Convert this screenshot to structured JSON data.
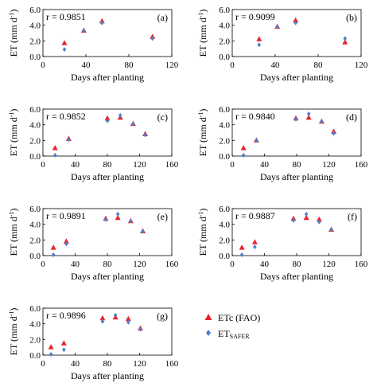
{
  "legend": {
    "items": [
      {
        "label": "ETc (FAO)",
        "marker": "triangle",
        "color": "#e8242a"
      },
      {
        "label_main": "ET",
        "label_sub": "SAFER",
        "marker": "diamond",
        "color": "#4f7fcc"
      }
    ]
  },
  "chart_data": [
    {
      "type": "scatter",
      "panel": "(a)",
      "r_text": "r = 0.9851",
      "xlabel": "Days after planting",
      "ylabel_main": "ET (mm d",
      "ylabel_sup": "-1",
      "ylabel_end": ")",
      "xlim": [
        0,
        120
      ],
      "ylim": [
        0,
        6
      ],
      "xticks": [
        "0",
        "40",
        "80",
        "120"
      ],
      "yticks": [
        "0.0",
        "2.0",
        "4.0",
        "6.0"
      ],
      "series": [
        {
          "name": "ETc (FAO)",
          "marker": "triangle",
          "x": [
            20,
            38,
            55,
            102
          ],
          "y": [
            1.7,
            3.3,
            4.5,
            2.5
          ]
        },
        {
          "name": "ETSAFER",
          "marker": "diamond",
          "x": [
            20,
            38,
            55,
            102
          ],
          "y": [
            0.9,
            3.3,
            4.3,
            2.3
          ]
        }
      ]
    },
    {
      "type": "scatter",
      "panel": "(b)",
      "r_text": "r = 0.9099",
      "xlabel": "Days after planting",
      "ylabel_main": "ET (mm d",
      "ylabel_sup": "-1",
      "ylabel_end": ")",
      "xlim": [
        0,
        120
      ],
      "ylim": [
        0,
        6
      ],
      "xticks": [
        "0",
        "40",
        "80",
        "120"
      ],
      "yticks": [
        "0.0",
        "2.0",
        "4.0",
        "6.0"
      ],
      "series": [
        {
          "name": "ETc (FAO)",
          "marker": "triangle",
          "x": [
            25,
            42,
            59,
            105
          ],
          "y": [
            2.2,
            3.8,
            4.6,
            1.8
          ]
        },
        {
          "name": "ETSAFER",
          "marker": "diamond",
          "x": [
            25,
            42,
            59,
            105
          ],
          "y": [
            1.5,
            3.8,
            4.3,
            2.3
          ]
        }
      ]
    },
    {
      "type": "scatter",
      "panel": "(c)",
      "r_text": "r = 0.9852",
      "xlabel": "Days after planting",
      "ylabel_main": "ET (mm d",
      "ylabel_sup": "-1",
      "ylabel_end": ")",
      "xlim": [
        0,
        160
      ],
      "ylim": [
        0,
        6
      ],
      "xticks": [
        "0",
        "40",
        "80",
        "120",
        "160"
      ],
      "yticks": [
        "0.0",
        "2.0",
        "4.0",
        "6.0"
      ],
      "series": [
        {
          "name": "ETc (FAO)",
          "marker": "triangle",
          "x": [
            15,
            32,
            80,
            96,
            112,
            127
          ],
          "y": [
            1.0,
            2.2,
            4.8,
            4.9,
            4.1,
            2.8
          ]
        },
        {
          "name": "ETSAFER",
          "marker": "diamond",
          "x": [
            15,
            32,
            80,
            96,
            112,
            127
          ],
          "y": [
            0.1,
            2.1,
            4.5,
            5.2,
            4.1,
            2.7
          ]
        }
      ]
    },
    {
      "type": "scatter",
      "panel": "(d)",
      "r_text": "r = 0.9840",
      "xlabel": "Days after planting",
      "ylabel_main": "ET (mm d",
      "ylabel_sup": "-1",
      "ylabel_end": ")",
      "xlim": [
        0,
        160
      ],
      "ylim": [
        0,
        6
      ],
      "xticks": [
        "0",
        "40",
        "80",
        "120",
        "160"
      ],
      "yticks": [
        "0.0",
        "2.0",
        "4.0",
        "6.0"
      ],
      "series": [
        {
          "name": "ETc (FAO)",
          "marker": "triangle",
          "x": [
            14,
            30,
            79,
            95,
            111,
            126
          ],
          "y": [
            1.0,
            2.0,
            4.8,
            4.9,
            4.4,
            3.1
          ]
        },
        {
          "name": "ETSAFER",
          "marker": "diamond",
          "x": [
            14,
            30,
            79,
            95,
            111,
            126
          ],
          "y": [
            0.1,
            2.0,
            4.7,
            5.4,
            4.4,
            2.9
          ]
        }
      ]
    },
    {
      "type": "scatter",
      "panel": "(e)",
      "r_text": "r = 0.9891",
      "xlabel": "Days after planting",
      "ylabel_main": "ET (mm d",
      "ylabel_sup": "-1",
      "ylabel_end": ")",
      "xlim": [
        0,
        160
      ],
      "ylim": [
        0,
        6
      ],
      "xticks": [
        "0",
        "40",
        "80",
        "120",
        "160"
      ],
      "yticks": [
        "0.0",
        "2.0",
        "4.0",
        "6.0"
      ],
      "series": [
        {
          "name": "ETc (FAO)",
          "marker": "triangle",
          "x": [
            13,
            29,
            78,
            93,
            109,
            124
          ],
          "y": [
            1.0,
            1.8,
            4.7,
            4.8,
            4.4,
            3.1
          ]
        },
        {
          "name": "ETSAFER",
          "marker": "diamond",
          "x": [
            13,
            29,
            78,
            93,
            109,
            124
          ],
          "y": [
            0.1,
            1.5,
            4.6,
            5.3,
            4.4,
            3.1
          ]
        }
      ]
    },
    {
      "type": "scatter",
      "panel": "(f)",
      "r_text": "r = 0.9887",
      "xlabel": "Days after planting",
      "ylabel_main": "ET (mm d",
      "ylabel_sup": "-1",
      "ylabel_end": ")",
      "xlim": [
        0,
        160
      ],
      "ylim": [
        0,
        6
      ],
      "xticks": [
        "0",
        "40",
        "80",
        "120",
        "160"
      ],
      "yticks": [
        "0.0",
        "2.0",
        "4.0",
        "6.0"
      ],
      "series": [
        {
          "name": "ETc (FAO)",
          "marker": "triangle",
          "x": [
            12,
            28,
            76,
            92,
            108,
            123
          ],
          "y": [
            1.0,
            1.7,
            4.7,
            4.8,
            4.6,
            3.3
          ]
        },
        {
          "name": "ETSAFER",
          "marker": "diamond",
          "x": [
            12,
            28,
            76,
            92,
            108,
            123
          ],
          "y": [
            0.1,
            1.1,
            4.5,
            5.3,
            4.3,
            3.3
          ]
        }
      ]
    },
    {
      "type": "scatter",
      "panel": "(g)",
      "r_text": "r = 0.9896",
      "xlabel": "Days after planting",
      "ylabel_main": "ET (mm d",
      "ylabel_sup": "-1",
      "ylabel_end": ")",
      "xlim": [
        0,
        160
      ],
      "ylim": [
        0,
        6
      ],
      "xticks": [
        "0",
        "40",
        "80",
        "120",
        "160"
      ],
      "yticks": [
        "0.0",
        "2.0",
        "4.0",
        "6.0"
      ],
      "series": [
        {
          "name": "ETc (FAO)",
          "marker": "triangle",
          "x": [
            10,
            26,
            74,
            90,
            106,
            121
          ],
          "y": [
            1.0,
            1.5,
            4.7,
            4.8,
            4.6,
            3.4
          ]
        },
        {
          "name": "ETSAFER",
          "marker": "diamond",
          "x": [
            10,
            26,
            74,
            90,
            106,
            121
          ],
          "y": [
            0.1,
            0.7,
            4.3,
            5.1,
            4.2,
            3.3
          ]
        }
      ]
    }
  ]
}
